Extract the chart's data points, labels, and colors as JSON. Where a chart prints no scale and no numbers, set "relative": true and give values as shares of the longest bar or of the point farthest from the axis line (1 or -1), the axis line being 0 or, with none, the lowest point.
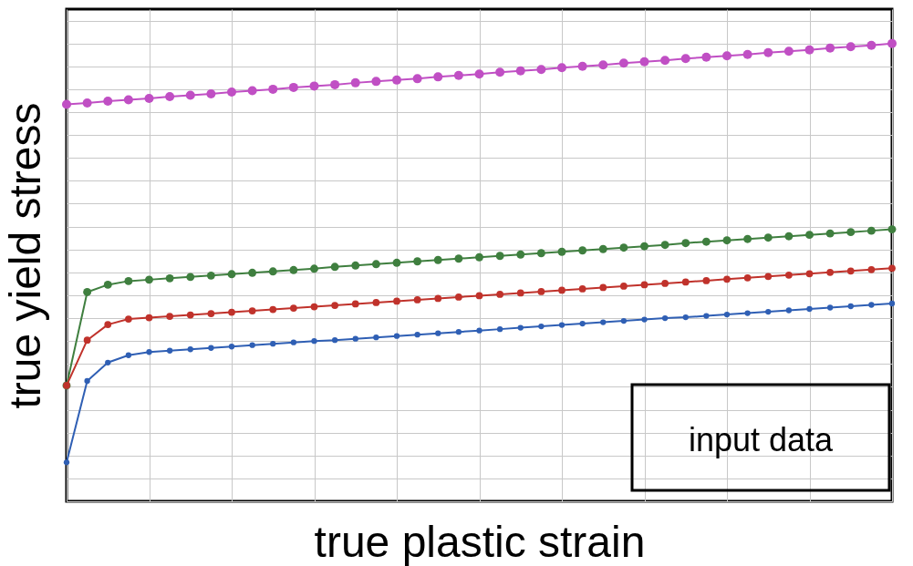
{
  "chart_data": {
    "type": "line",
    "relative": true,
    "xlabel": "true plastic strain",
    "ylabel": "true yield stress",
    "categories": [
      null,
      null,
      null,
      null,
      null,
      null,
      null,
      null,
      null,
      null,
      null,
      null,
      null,
      null,
      null,
      null,
      null,
      null,
      null,
      null,
      null,
      null,
      null,
      null,
      null,
      null,
      null,
      null,
      null,
      null,
      null,
      null,
      null,
      null,
      null,
      null,
      null,
      null,
      null,
      null,
      null
    ],
    "series": [
      {
        "color": "#c04fc4",
        "values": [
          0.867,
          0.87,
          0.874,
          0.877,
          0.88,
          0.884,
          0.887,
          0.89,
          0.894,
          0.897,
          0.9,
          0.904,
          0.907,
          0.91,
          0.914,
          0.917,
          0.92,
          0.923,
          0.927,
          0.93,
          0.933,
          0.937,
          0.94,
          0.943,
          0.947,
          0.95,
          0.953,
          0.957,
          0.96,
          0.963,
          0.967,
          0.97,
          0.973,
          0.976,
          0.98,
          0.983,
          0.986,
          0.99,
          0.993,
          0.996,
          1.0
        ]
      },
      {
        "color": "#3f7f3f",
        "values": [
          0.253,
          0.457,
          0.473,
          0.481,
          0.484,
          0.487,
          0.49,
          0.493,
          0.496,
          0.499,
          0.502,
          0.505,
          0.508,
          0.512,
          0.515,
          0.518,
          0.521,
          0.524,
          0.527,
          0.53,
          0.533,
          0.536,
          0.539,
          0.542,
          0.545,
          0.548,
          0.551,
          0.554,
          0.557,
          0.56,
          0.564,
          0.567,
          0.57,
          0.573,
          0.576,
          0.579,
          0.582,
          0.585,
          0.588,
          0.591,
          0.594
        ]
      },
      {
        "color": "#c0322b",
        "values": [
          0.253,
          0.352,
          0.386,
          0.398,
          0.401,
          0.404,
          0.407,
          0.41,
          0.413,
          0.416,
          0.419,
          0.422,
          0.425,
          0.428,
          0.431,
          0.434,
          0.437,
          0.44,
          0.443,
          0.446,
          0.449,
          0.452,
          0.455,
          0.458,
          0.461,
          0.464,
          0.467,
          0.47,
          0.473,
          0.476,
          0.479,
          0.482,
          0.485,
          0.488,
          0.491,
          0.494,
          0.497,
          0.5,
          0.503,
          0.506,
          0.509
        ]
      },
      {
        "color": "#2f5fb4",
        "values": [
          0.085,
          0.263,
          0.303,
          0.319,
          0.326,
          0.329,
          0.332,
          0.335,
          0.338,
          0.341,
          0.344,
          0.347,
          0.35,
          0.352,
          0.355,
          0.358,
          0.361,
          0.364,
          0.367,
          0.37,
          0.373,
          0.376,
          0.379,
          0.382,
          0.385,
          0.388,
          0.391,
          0.394,
          0.397,
          0.4,
          0.402,
          0.405,
          0.408,
          0.411,
          0.414,
          0.417,
          0.42,
          0.423,
          0.426,
          0.429,
          0.432
        ]
      }
    ],
    "grid": true,
    "marker": "circle",
    "line_style": "solid",
    "annotations": [
      "input data"
    ]
  }
}
